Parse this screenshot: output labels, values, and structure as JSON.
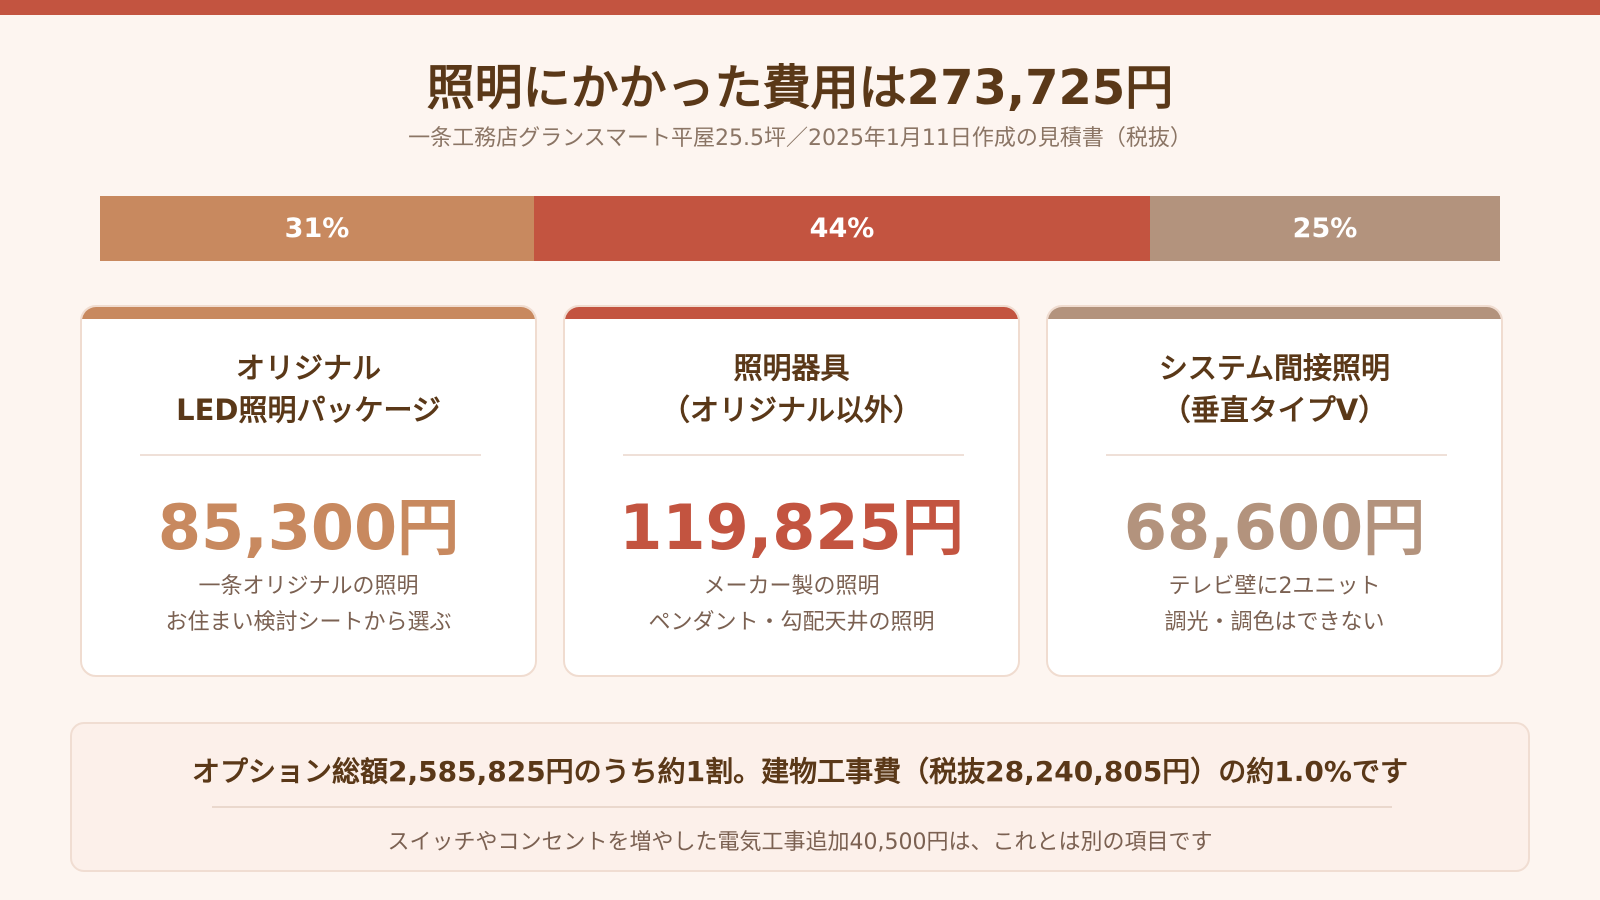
{
  "header": {
    "title": "照明にかかった費用は273,725円",
    "subtitle": "一条工務店グランスマート平屋25.5坪／2025年1月11日作成の見積書（税抜）"
  },
  "ratio_bar": [
    {
      "label": "31%",
      "share": 0.31,
      "color": "#c8895f"
    },
    {
      "label": "44%",
      "share": 0.44,
      "color": "#c35440"
    },
    {
      "label": "25%",
      "share": 0.25,
      "color": "#b3937d"
    }
  ],
  "cards": [
    {
      "title_line1": "オリジナル",
      "title_line2": "LED照明パッケージ",
      "amount": "85,300円",
      "desc_line1": "一条オリジナルの照明",
      "desc_line2": "お住まい検討シートから選ぶ",
      "color": "#c8895f"
    },
    {
      "title_line1": "照明器具",
      "title_line2": "（オリジナル以外）",
      "amount": "119,825円",
      "desc_line1": "メーカー製の照明",
      "desc_line2": "ペンダント・勾配天井の照明",
      "color": "#c35440"
    },
    {
      "title_line1": "システム間接照明",
      "title_line2": "（垂直タイプV）",
      "amount": "68,600円",
      "desc_line1": "テレビ壁に2ユニット",
      "desc_line2": "調光・調色はできない",
      "color": "#b3937d"
    }
  ],
  "summary": {
    "main": "オプション総額2,585,825円のうち約1割。建物工事費（税抜28,240,805円）の約1.0%です",
    "note": "スイッチやコンセントを増やした電気工事追加40,500円は、これとは別の項目です"
  }
}
